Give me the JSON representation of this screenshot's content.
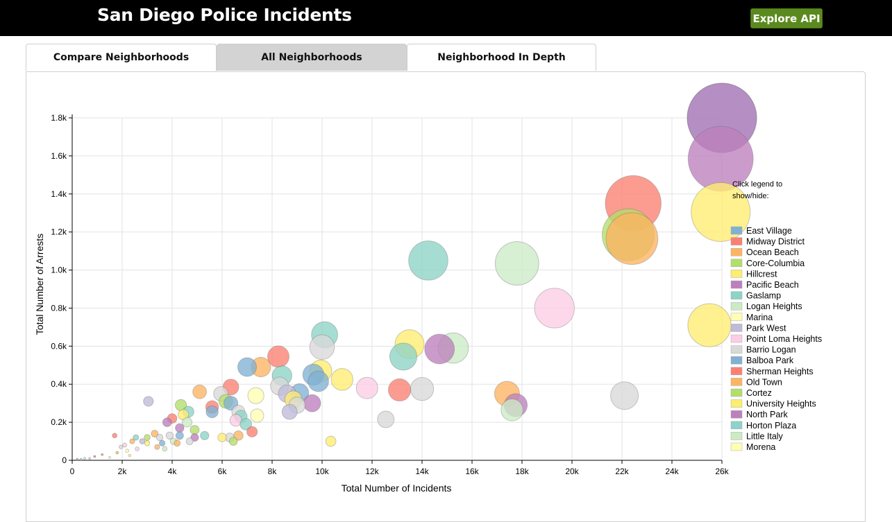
{
  "header": {
    "title": "San Diego Police Incidents",
    "api_button_label": "Explore API"
  },
  "tabs": [
    {
      "label": "Compare Neighborhoods",
      "active": false
    },
    {
      "label": "All Neighborhoods",
      "active": true
    },
    {
      "label": "Neighborhood In Depth",
      "active": false
    }
  ],
  "colors": {
    "header_bg": "#000000",
    "button_green": "#5a8a1e",
    "active_tab": "#d3d3d3"
  },
  "chart_data": {
    "type": "scatter",
    "xlabel": "Total Number of Incidents",
    "ylabel": "Total Number of Arrests",
    "xlim": [
      0,
      26000
    ],
    "ylim": [
      0,
      1800
    ],
    "x_ticks": [
      0,
      2000,
      4000,
      6000,
      8000,
      10000,
      12000,
      14000,
      16000,
      18000,
      20000,
      22000,
      24000,
      26000
    ],
    "x_tick_labels": [
      "0",
      "2k",
      "4k",
      "6k",
      "8k",
      "10k",
      "12k",
      "14k",
      "16k",
      "18k",
      "20k",
      "22k",
      "24k",
      "26k"
    ],
    "y_ticks": [
      0,
      200,
      400,
      600,
      800,
      1000,
      1200,
      1400,
      1600,
      1800
    ],
    "y_tick_labels": [
      "0",
      "0.2k",
      "0.4k",
      "0.6k",
      "0.8k",
      "1.0k",
      "1.2k",
      "1.4k",
      "1.6k",
      "1.8k"
    ],
    "grid": true,
    "legend_hint": [
      "Click legend to",
      "show/hide:"
    ],
    "legend_placement": "right",
    "legend": [
      {
        "name": "East Village",
        "color": "#80b1d3"
      },
      {
        "name": "Midway District",
        "color": "#fb8072"
      },
      {
        "name": "Ocean Beach",
        "color": "#fdb462"
      },
      {
        "name": "Core-Columbia",
        "color": "#b3de69"
      },
      {
        "name": "Hillcrest",
        "color": "#ffed6f"
      },
      {
        "name": "Pacific Beach",
        "color": "#bc80bd"
      },
      {
        "name": "Gaslamp",
        "color": "#8dd3c7"
      },
      {
        "name": "Logan Heights",
        "color": "#ccebc5"
      },
      {
        "name": "Marina",
        "color": "#ffffb3"
      },
      {
        "name": "Park West",
        "color": "#bebada"
      },
      {
        "name": "Point Loma Heights",
        "color": "#fccde5"
      },
      {
        "name": "Barrio Logan",
        "color": "#d9d9d9"
      },
      {
        "name": "Balboa Park",
        "color": "#80b1d3"
      },
      {
        "name": "Sherman Heights",
        "color": "#fb8072"
      },
      {
        "name": "Old Town",
        "color": "#fdb462"
      },
      {
        "name": "Cortez",
        "color": "#b3de69"
      },
      {
        "name": "University Heights",
        "color": "#ffed6f"
      },
      {
        "name": "North Park",
        "color": "#bc80bd"
      },
      {
        "name": "Horton Plaza",
        "color": "#8dd3c7"
      },
      {
        "name": "Little Italy",
        "color": "#ccebc5"
      },
      {
        "name": "Morena",
        "color": "#ffffb3"
      }
    ],
    "points": [
      {
        "x": 26000,
        "y": 1800,
        "color": "#80b1d3"
      },
      {
        "x": 22450,
        "y": 1350,
        "color": "#fb8072"
      },
      {
        "x": 22400,
        "y": 1165,
        "color": "#fdb462"
      },
      {
        "x": 22250,
        "y": 1185,
        "color": "#b3de69"
      },
      {
        "x": 25950,
        "y": 1305,
        "color": "#ffed6f"
      },
      {
        "x": 26000,
        "y": 1800,
        "color": "#bc80bd"
      },
      {
        "x": 14250,
        "y": 1050,
        "color": "#8dd3c7"
      },
      {
        "x": 17800,
        "y": 1035,
        "color": "#ccebc5"
      },
      {
        "x": 7350,
        "y": 340,
        "color": "#ffffb3"
      },
      {
        "x": 8700,
        "y": 255,
        "color": "#bebada"
      },
      {
        "x": 11800,
        "y": 380,
        "color": "#fccde5"
      },
      {
        "x": 10000,
        "y": 595,
        "color": "#d9d9d9"
      },
      {
        "x": 6350,
        "y": 300,
        "color": "#80b1d3"
      },
      {
        "x": 4000,
        "y": 220,
        "color": "#fb8072"
      },
      {
        "x": 5100,
        "y": 360,
        "color": "#fdb462"
      },
      {
        "x": 4900,
        "y": 160,
        "color": "#b3de69"
      },
      {
        "x": 8850,
        "y": 320,
        "color": "#ffed6f"
      },
      {
        "x": 25950,
        "y": 1585,
        "color": "#bc80bd"
      },
      {
        "x": 4650,
        "y": 255,
        "color": "#8dd3c7"
      },
      {
        "x": 4050,
        "y": 100,
        "color": "#ccebc5"
      },
      {
        "x": 7400,
        "y": 235,
        "color": "#ffffb3"
      },
      {
        "x": 3050,
        "y": 310,
        "color": "#bebada"
      },
      {
        "x": 2100,
        "y": 80,
        "color": "#fccde5"
      },
      {
        "x": 6650,
        "y": 255,
        "color": "#d9d9d9"
      },
      {
        "x": 9850,
        "y": 415,
        "color": "#80b1d3"
      },
      {
        "x": 8250,
        "y": 545,
        "color": "#fb8072"
      },
      {
        "x": 4200,
        "y": 90,
        "color": "#fdb462"
      },
      {
        "x": 6150,
        "y": 310,
        "color": "#b3de69"
      },
      {
        "x": 10800,
        "y": 425,
        "color": "#ffed6f"
      },
      {
        "x": 14700,
        "y": 585,
        "color": "#bc80bd"
      },
      {
        "x": 13250,
        "y": 545,
        "color": "#8dd3c7"
      },
      {
        "x": 3900,
        "y": 130,
        "color": "#d9d9d9"
      },
      {
        "x": 19300,
        "y": 800,
        "color": "#fccde5"
      },
      {
        "x": 25500,
        "y": 710,
        "color": "#ffed6f"
      },
      {
        "x": 10100,
        "y": 660,
        "color": "#8dd3c7"
      },
      {
        "x": 6350,
        "y": 385,
        "color": "#fb8072"
      },
      {
        "x": 7000,
        "y": 490,
        "color": "#80b1d3"
      },
      {
        "x": 7550,
        "y": 490,
        "color": "#fdb462"
      },
      {
        "x": 13500,
        "y": 610,
        "color": "#ffed6f"
      },
      {
        "x": 15250,
        "y": 590,
        "color": "#ccebc5"
      },
      {
        "x": 13100,
        "y": 370,
        "color": "#fb8072"
      },
      {
        "x": 14000,
        "y": 375,
        "color": "#d9d9d9"
      },
      {
        "x": 17400,
        "y": 350,
        "color": "#fdb462"
      },
      {
        "x": 17750,
        "y": 290,
        "color": "#bc80bd"
      },
      {
        "x": 17600,
        "y": 265,
        "color": "#ccebc5"
      },
      {
        "x": 22100,
        "y": 340,
        "color": "#d9d9d9"
      },
      {
        "x": 12550,
        "y": 215,
        "color": "#d9d9d9"
      },
      {
        "x": 10350,
        "y": 100,
        "color": "#ffed6f"
      },
      {
        "x": 9650,
        "y": 450,
        "color": "#80b1d3"
      },
      {
        "x": 9950,
        "y": 470,
        "color": "#ffed6f"
      },
      {
        "x": 8400,
        "y": 445,
        "color": "#8dd3c7"
      },
      {
        "x": 8300,
        "y": 390,
        "color": "#d9d9d9"
      },
      {
        "x": 8600,
        "y": 350,
        "color": "#bebada"
      },
      {
        "x": 9100,
        "y": 355,
        "color": "#80b1d3"
      },
      {
        "x": 9600,
        "y": 300,
        "color": "#bc80bd"
      },
      {
        "x": 9000,
        "y": 290,
        "color": "#d9d9d9"
      },
      {
        "x": 6750,
        "y": 230,
        "color": "#8dd3c7"
      },
      {
        "x": 6950,
        "y": 190,
        "color": "#8dd3c7"
      },
      {
        "x": 6550,
        "y": 210,
        "color": "#fccde5"
      },
      {
        "x": 7200,
        "y": 150,
        "color": "#fb8072"
      },
      {
        "x": 6650,
        "y": 130,
        "color": "#fdb462"
      },
      {
        "x": 6300,
        "y": 120,
        "color": "#d9d9d9"
      },
      {
        "x": 6000,
        "y": 120,
        "color": "#ffed6f"
      },
      {
        "x": 6450,
        "y": 100,
        "color": "#b3de69"
      },
      {
        "x": 5300,
        "y": 130,
        "color": "#8dd3c7"
      },
      {
        "x": 5600,
        "y": 255,
        "color": "#80b1d3"
      },
      {
        "x": 5600,
        "y": 280,
        "color": "#fb8072"
      },
      {
        "x": 5950,
        "y": 350,
        "color": "#d9d9d9"
      },
      {
        "x": 4350,
        "y": 290,
        "color": "#b3de69"
      },
      {
        "x": 4450,
        "y": 240,
        "color": "#ffed6f"
      },
      {
        "x": 4300,
        "y": 170,
        "color": "#bc80bd"
      },
      {
        "x": 4600,
        "y": 200,
        "color": "#ccebc5"
      },
      {
        "x": 3800,
        "y": 200,
        "color": "#bc80bd"
      },
      {
        "x": 3300,
        "y": 140,
        "color": "#fdb462"
      },
      {
        "x": 3500,
        "y": 120,
        "color": "#d9d9d9"
      },
      {
        "x": 3000,
        "y": 120,
        "color": "#b3de69"
      },
      {
        "x": 3000,
        "y": 90,
        "color": "#ffed6f"
      },
      {
        "x": 2800,
        "y": 100,
        "color": "#bebada"
      },
      {
        "x": 2550,
        "y": 120,
        "color": "#8dd3c7"
      },
      {
        "x": 2400,
        "y": 100,
        "color": "#fdb462"
      },
      {
        "x": 2600,
        "y": 60,
        "color": "#fccde5"
      },
      {
        "x": 3400,
        "y": 70,
        "color": "#fdb462"
      },
      {
        "x": 3700,
        "y": 60,
        "color": "#ccebc5"
      },
      {
        "x": 3600,
        "y": 90,
        "color": "#80b1d3"
      },
      {
        "x": 2200,
        "y": 50,
        "color": "#ffffb3"
      },
      {
        "x": 1700,
        "y": 130,
        "color": "#fb8072"
      },
      {
        "x": 1950,
        "y": 70,
        "color": "#d9d9d9"
      },
      {
        "x": 1800,
        "y": 40,
        "color": "#fdb462"
      },
      {
        "x": 2300,
        "y": 25,
        "color": "#ffed6f"
      },
      {
        "x": 1200,
        "y": 30,
        "color": "#fb8072"
      },
      {
        "x": 900,
        "y": 20,
        "color": "#bc80bd"
      },
      {
        "x": 700,
        "y": 10,
        "color": "#d9d9d9"
      },
      {
        "x": 500,
        "y": 10,
        "color": "#ccebc5"
      },
      {
        "x": 350,
        "y": 5,
        "color": "#8dd3c7"
      },
      {
        "x": 200,
        "y": 5,
        "color": "#80b1d3"
      },
      {
        "x": 1500,
        "y": 15,
        "color": "#ffffb3"
      },
      {
        "x": 4700,
        "y": 100,
        "color": "#d9d9d9"
      },
      {
        "x": 4900,
        "y": 120,
        "color": "#bc80bd"
      },
      {
        "x": 4300,
        "y": 130,
        "color": "#80b1d3"
      }
    ]
  }
}
